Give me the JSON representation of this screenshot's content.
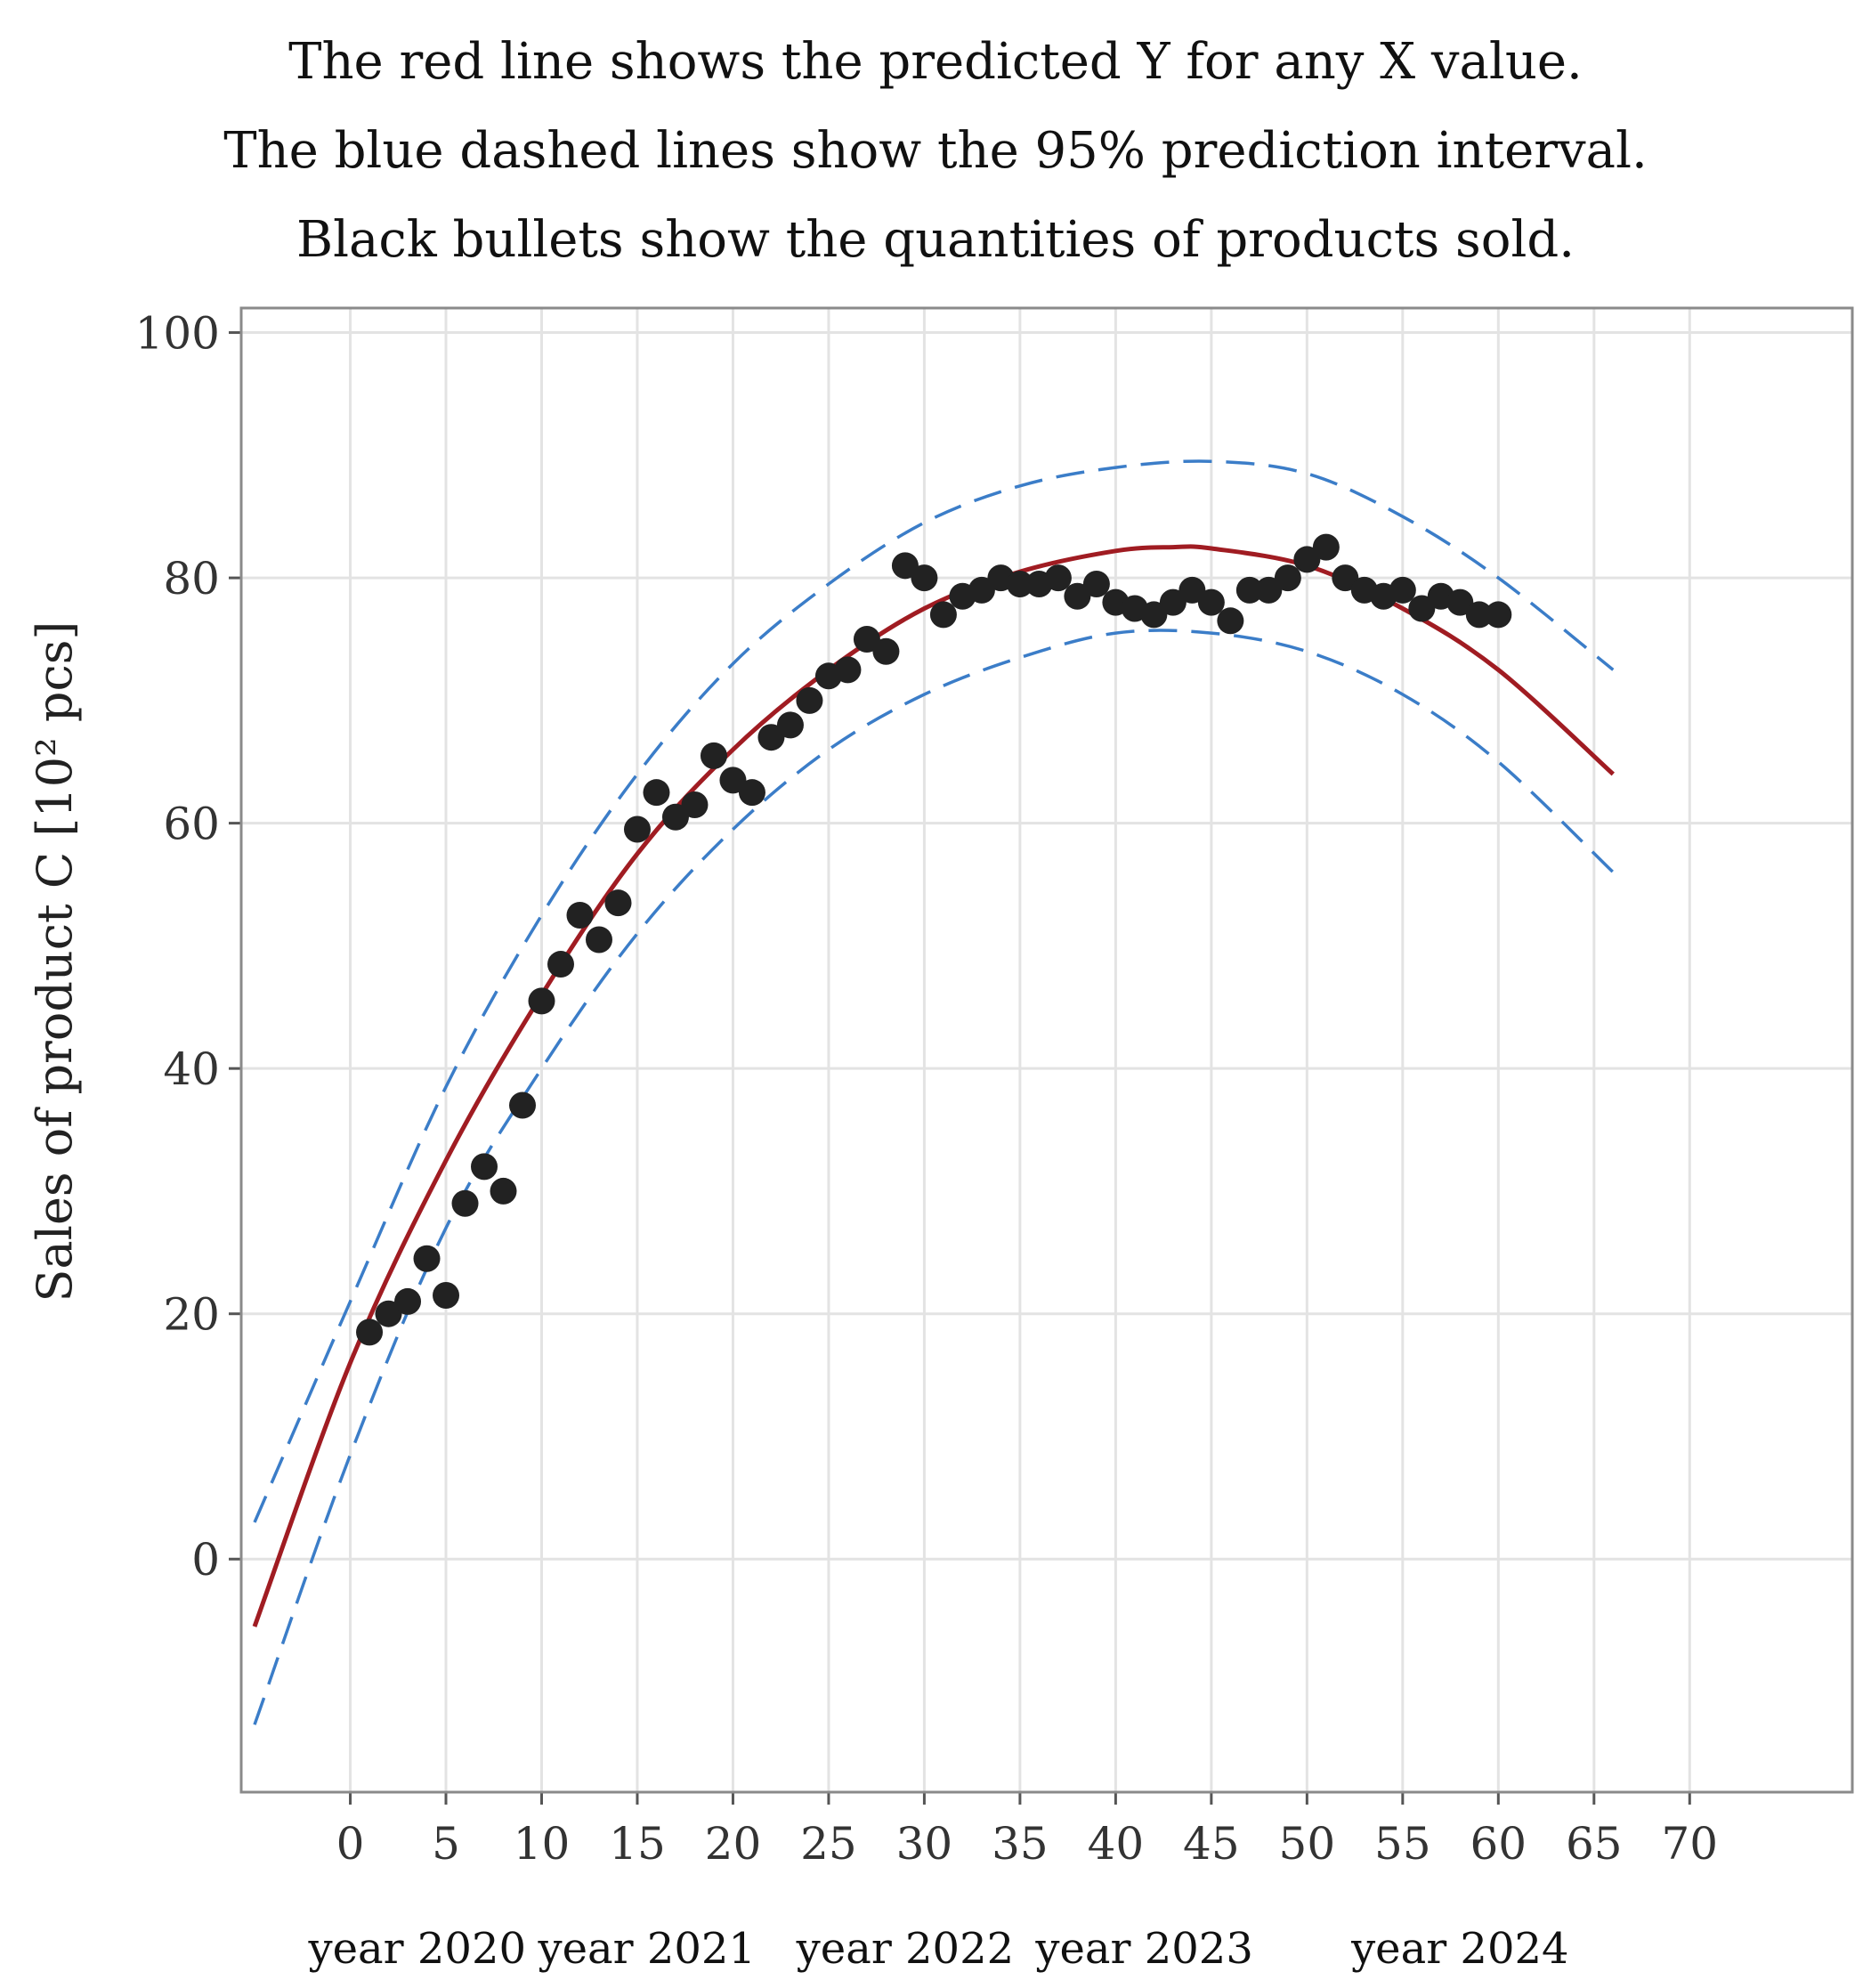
{
  "chart_data": {
    "type": "scatter",
    "title_lines": [
      "The red line shows the predicted Y for any  X value.",
      "The blue dashed lines show the 95% prediction interval.",
      "Black bullets show the quantities of products sold."
    ],
    "xlabel": "",
    "ylabel": "Sales of product C [10² pcs]",
    "xlim": [
      -5.7,
      78.5
    ],
    "ylim": [
      -19,
      102
    ],
    "x_ticks": [
      0,
      5,
      10,
      15,
      20,
      25,
      30,
      35,
      40,
      45,
      50,
      55,
      60,
      65,
      70
    ],
    "y_ticks": [
      0,
      20,
      40,
      60,
      80,
      100
    ],
    "grid": true,
    "legend": "none",
    "year_labels": [
      {
        "label": "year 2020",
        "x": 3.5
      },
      {
        "label": "year 2021",
        "x": 15.5
      },
      {
        "label": "year 2022",
        "x": 29
      },
      {
        "label": "year 2023",
        "x": 41.5
      },
      {
        "label": "year 2024",
        "x": 58
      }
    ],
    "series": [
      {
        "name": "Quantities of products sold",
        "kind": "points",
        "color": "#222222",
        "points": [
          [
            1,
            18.5
          ],
          [
            2,
            20
          ],
          [
            3,
            21
          ],
          [
            4,
            24.5
          ],
          [
            5,
            21.5
          ],
          [
            6,
            29
          ],
          [
            7,
            32
          ],
          [
            8,
            30
          ],
          [
            9,
            37
          ],
          [
            10,
            45.5
          ],
          [
            11,
            48.5
          ],
          [
            12,
            52.5
          ],
          [
            13,
            50.5
          ],
          [
            14,
            53.5
          ],
          [
            15,
            59.5
          ],
          [
            16,
            62.5
          ],
          [
            17,
            60.5
          ],
          [
            18,
            61.5
          ],
          [
            19,
            65.5
          ],
          [
            20,
            63.5
          ],
          [
            21,
            62.5
          ],
          [
            22,
            67
          ],
          [
            23,
            68
          ],
          [
            24,
            70
          ],
          [
            25,
            72
          ],
          [
            26,
            72.5
          ],
          [
            27,
            75
          ],
          [
            28,
            74
          ],
          [
            29,
            81
          ],
          [
            30,
            80
          ],
          [
            31,
            77
          ],
          [
            32,
            78.5
          ],
          [
            33,
            79
          ],
          [
            34,
            80
          ],
          [
            35,
            79.5
          ],
          [
            36,
            79.5
          ],
          [
            37,
            80
          ],
          [
            38,
            78.5
          ],
          [
            39,
            79.5
          ],
          [
            40,
            78
          ],
          [
            41,
            77.5
          ],
          [
            42,
            77
          ],
          [
            43,
            78
          ],
          [
            44,
            79
          ],
          [
            45,
            78
          ],
          [
            46,
            76.5
          ],
          [
            47,
            79
          ],
          [
            48,
            79
          ],
          [
            49,
            80
          ],
          [
            50,
            81.5
          ],
          [
            51,
            82.5
          ],
          [
            52,
            80
          ],
          [
            53,
            79
          ],
          [
            54,
            78.5
          ],
          [
            55,
            79
          ],
          [
            56,
            77.5
          ],
          [
            57,
            78.5
          ],
          [
            58,
            78
          ],
          [
            59,
            77
          ],
          [
            60,
            77
          ]
        ]
      },
      {
        "name": "Predicted Y",
        "kind": "line",
        "color": "#a01c22",
        "points": [
          [
            -5,
            -5.5
          ],
          [
            0,
            16
          ],
          [
            5,
            32.5
          ],
          [
            10,
            46
          ],
          [
            15,
            57.5
          ],
          [
            20,
            66
          ],
          [
            25,
            72.5
          ],
          [
            30,
            77.5
          ],
          [
            35,
            80.5
          ],
          [
            40,
            82.2
          ],
          [
            43,
            82.5
          ],
          [
            45,
            82.4
          ],
          [
            50,
            81
          ],
          [
            55,
            77.5
          ],
          [
            60,
            72.5
          ],
          [
            66,
            64
          ]
        ]
      },
      {
        "name": "95% prediction interval (upper)",
        "kind": "dashed-line",
        "color": "#3b7dc8",
        "points": [
          [
            -5,
            3
          ],
          [
            0,
            21
          ],
          [
            5,
            38.5
          ],
          [
            10,
            52.5
          ],
          [
            15,
            64
          ],
          [
            20,
            73
          ],
          [
            25,
            79.5
          ],
          [
            30,
            84.5
          ],
          [
            35,
            87.5
          ],
          [
            40,
            89
          ],
          [
            45,
            89.5
          ],
          [
            50,
            88.5
          ],
          [
            55,
            85
          ],
          [
            60,
            80
          ],
          [
            66,
            72.5
          ]
        ]
      },
      {
        "name": "95% prediction interval (lower)",
        "kind": "dashed-line",
        "color": "#3b7dc8",
        "points": [
          [
            -5,
            -13.5
          ],
          [
            0,
            8.5
          ],
          [
            5,
            27
          ],
          [
            10,
            40
          ],
          [
            15,
            51
          ],
          [
            20,
            59.5
          ],
          [
            25,
            66
          ],
          [
            30,
            70.5
          ],
          [
            35,
            73.5
          ],
          [
            40,
            75.5
          ],
          [
            45,
            75.5
          ],
          [
            50,
            74
          ],
          [
            55,
            70.5
          ],
          [
            60,
            65
          ],
          [
            66,
            56
          ]
        ]
      }
    ]
  }
}
